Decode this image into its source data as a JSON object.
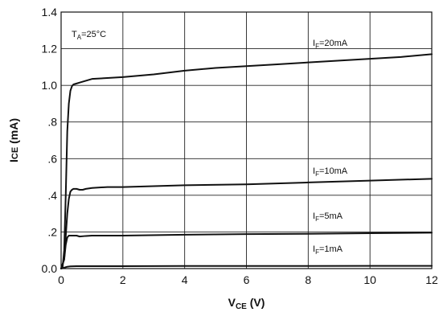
{
  "chart_data": {
    "type": "line",
    "xlabel": {
      "main": "V",
      "sub": "CE",
      "unit": " (V)"
    },
    "ylabel": {
      "main": "I",
      "sub": "CE",
      "unit": " (mA)"
    },
    "xlim": [
      0,
      12
    ],
    "ylim": [
      0,
      1.4
    ],
    "grid": true,
    "x_ticks": [
      {
        "value": 0,
        "label": "0"
      },
      {
        "value": 2,
        "label": "2"
      },
      {
        "value": 4,
        "label": "4"
      },
      {
        "value": 6,
        "label": "6"
      },
      {
        "value": 8,
        "label": "8"
      },
      {
        "value": 10,
        "label": "10"
      },
      {
        "value": 12,
        "label": "12"
      }
    ],
    "y_ticks": [
      {
        "value": 0,
        "label": "0.0"
      },
      {
        "value": 0.2,
        "label": ".2"
      },
      {
        "value": 0.4,
        "label": ".4"
      },
      {
        "value": 0.6,
        "label": ".6"
      },
      {
        "value": 0.8,
        "label": ".8"
      },
      {
        "value": 1.0,
        "label": "1.0"
      },
      {
        "value": 1.2,
        "label": "1.2"
      },
      {
        "value": 1.4,
        "label": "1.4"
      }
    ],
    "condition": {
      "main": "T",
      "sub": "A",
      "rest": "=25°C"
    },
    "series": [
      {
        "name": "I_F=20mA",
        "label": {
          "main": "I",
          "sub": "F",
          "rest": "=20mA"
        },
        "x": [
          0,
          0.05,
          0.1,
          0.15,
          0.2,
          0.25,
          0.3,
          0.35,
          0.4,
          0.5,
          0.6,
          0.8,
          1.0,
          1.5,
          2,
          3,
          4,
          5,
          6,
          7,
          8,
          9,
          10,
          11,
          12
        ],
        "y": [
          0,
          0.01,
          0.1,
          0.4,
          0.75,
          0.9,
          0.97,
          0.995,
          1.005,
          1.01,
          1.015,
          1.025,
          1.035,
          1.04,
          1.045,
          1.06,
          1.08,
          1.095,
          1.105,
          1.115,
          1.125,
          1.135,
          1.145,
          1.155,
          1.17
        ]
      },
      {
        "name": "I_F=10mA",
        "label": {
          "main": "I",
          "sub": "F",
          "rest": "=10mA"
        },
        "x": [
          0,
          0.1,
          0.2,
          0.25,
          0.3,
          0.35,
          0.4,
          0.5,
          0.6,
          0.7,
          0.8,
          1.0,
          1.5,
          2,
          4,
          6,
          8,
          10,
          12
        ],
        "y": [
          0,
          0.05,
          0.3,
          0.38,
          0.42,
          0.43,
          0.435,
          0.435,
          0.43,
          0.43,
          0.435,
          0.44,
          0.445,
          0.445,
          0.455,
          0.46,
          0.47,
          0.48,
          0.49
        ]
      },
      {
        "name": "I_F=5mA",
        "label": {
          "main": "I",
          "sub": "F",
          "rest": "=5mA"
        },
        "x": [
          0,
          0.1,
          0.15,
          0.2,
          0.25,
          0.3,
          0.4,
          0.5,
          0.6,
          0.8,
          1.0,
          2,
          4,
          6,
          8,
          10,
          12
        ],
        "y": [
          0,
          0.05,
          0.13,
          0.17,
          0.18,
          0.18,
          0.18,
          0.18,
          0.175,
          0.178,
          0.18,
          0.18,
          0.185,
          0.188,
          0.19,
          0.193,
          0.196
        ]
      },
      {
        "name": "I_F=1mA",
        "label": {
          "main": "I",
          "sub": "F",
          "rest": "=1mA"
        },
        "x": [
          0,
          0.1,
          0.2,
          0.3,
          0.5,
          1,
          2,
          4,
          6,
          8,
          10,
          12
        ],
        "y": [
          0,
          0.005,
          0.01,
          0.012,
          0.013,
          0.013,
          0.013,
          0.014,
          0.014,
          0.014,
          0.015,
          0.015
        ]
      }
    ]
  }
}
